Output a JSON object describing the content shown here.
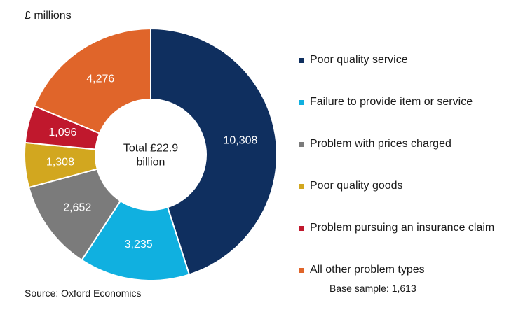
{
  "unit_label": "£ millions",
  "source": "Source: Oxford Economics",
  "base_sample": "Base sample: 1,613",
  "chart_data": {
    "type": "pie",
    "variant": "donut",
    "center_label": [
      "Total £22.9",
      "billion"
    ],
    "slices": [
      {
        "label": "Poor quality service",
        "value": 10308,
        "value_label": "10,308",
        "color": "#0f2f5f"
      },
      {
        "label": "Failure to provide item or service",
        "value": 3235,
        "value_label": "3,235",
        "color": "#10b0e0"
      },
      {
        "label": "Problem with prices charged",
        "value": 2652,
        "value_label": "2,652",
        "color": "#7b7b7b"
      },
      {
        "label": "Poor quality goods",
        "value": 1308,
        "value_label": "1,308",
        "color": "#d2a71f"
      },
      {
        "label": "Problem pursuing an insurance claim",
        "value": 1096,
        "value_label": "1,096",
        "color": "#c0182d"
      },
      {
        "label": "All other problem types",
        "value": 4276,
        "value_label": "4,276",
        "color": "#e0652a"
      }
    ],
    "legend_position": "right"
  }
}
